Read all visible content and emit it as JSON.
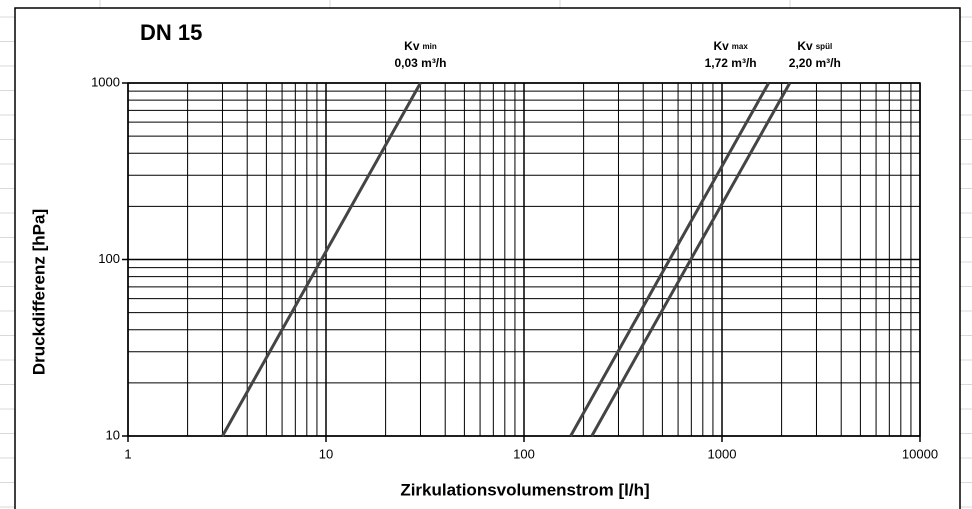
{
  "chart_data": {
    "type": "line",
    "title": "DN 15",
    "xlabel": "Zirkulationsvolumenstrom [l/h]",
    "ylabel": "Druckdifferenz [hPa]",
    "xlog": true,
    "ylog": true,
    "xlim": [
      1,
      10000
    ],
    "ylim": [
      10,
      1000
    ],
    "xticks": [
      1,
      10,
      100,
      1000,
      10000
    ],
    "yticks": [
      10,
      100,
      1000
    ],
    "xgrid": [
      2,
      3,
      4,
      5,
      6,
      7,
      8,
      9,
      20,
      30,
      40,
      50,
      60,
      70,
      80,
      90,
      200,
      300,
      400,
      500,
      600,
      700,
      800,
      900,
      2000,
      3000,
      4000,
      5000,
      6000,
      7000,
      8000,
      9000
    ],
    "ygrid": [
      20,
      30,
      40,
      50,
      60,
      70,
      80,
      90,
      200,
      300,
      400,
      500,
      600,
      700,
      800,
      900
    ],
    "grid": true,
    "series": [
      {
        "name": "Kv",
        "sub": "min",
        "kv": "0,03 m³/h",
        "color": "#444444",
        "x": [
          3,
          30
        ],
        "values": [
          10,
          1000
        ]
      },
      {
        "name": "Kv",
        "sub": "max",
        "kv": "1,72 m³/h",
        "color": "#444444",
        "x": [
          172,
          1720
        ],
        "values": [
          10,
          1000
        ]
      },
      {
        "name": "Kv",
        "sub": "spül",
        "kv": "2,20 m³/h",
        "color": "#444444",
        "x": [
          220,
          2200
        ],
        "values": [
          10,
          1000
        ]
      }
    ]
  }
}
